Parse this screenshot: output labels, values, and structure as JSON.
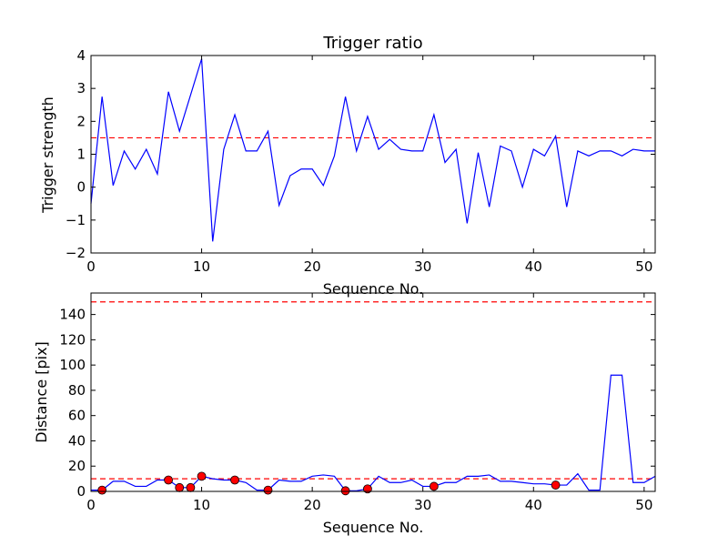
{
  "chart_data": [
    {
      "type": "line",
      "title": "Trigger ratio",
      "xlabel": "Sequence No.",
      "ylabel": "Trigger strength",
      "xlim": [
        0,
        51
      ],
      "ylim": [
        -2,
        4
      ],
      "xticks": [
        0,
        10,
        20,
        30,
        40,
        50
      ],
      "yticks": [
        -2,
        -1,
        0,
        1,
        2,
        3,
        4
      ],
      "ytick_labels": [
        "−2",
        "−1",
        "0",
        "1",
        "2",
        "3",
        "4"
      ],
      "grid": false,
      "threshold": 1.5,
      "threshold_color": "#ff0000",
      "line_color": "#0000ff",
      "x": [
        0,
        1,
        2,
        3,
        4,
        5,
        6,
        7,
        8,
        9,
        10,
        11,
        12,
        13,
        14,
        15,
        16,
        17,
        18,
        19,
        20,
        21,
        22,
        23,
        24,
        25,
        26,
        27,
        28,
        29,
        30,
        31,
        32,
        33,
        34,
        35,
        36,
        37,
        38,
        39,
        40,
        41,
        42,
        43,
        44,
        45,
        46,
        47,
        48,
        49,
        50,
        51
      ],
      "y": [
        -0.5,
        2.75,
        0.05,
        1.1,
        0.55,
        1.15,
        0.4,
        2.9,
        1.7,
        2.8,
        3.9,
        -1.65,
        1.15,
        2.2,
        1.1,
        1.1,
        1.7,
        -0.55,
        0.35,
        0.55,
        0.55,
        0.05,
        0.95,
        2.75,
        1.1,
        2.15,
        1.15,
        1.45,
        1.15,
        1.1,
        1.1,
        2.2,
        0.75,
        1.15,
        -1.1,
        1.05,
        -0.6,
        1.25,
        1.1,
        0.0,
        1.15,
        0.95,
        1.55,
        -0.6,
        1.1,
        0.95,
        1.1,
        1.1,
        0.95,
        1.15,
        1.1,
        1.1
      ]
    },
    {
      "type": "line",
      "title": "",
      "xlabel": "Sequence No.",
      "ylabel": "Distance [pix]",
      "xlim": [
        0,
        51
      ],
      "ylim": [
        0,
        157
      ],
      "xticks": [
        0,
        10,
        20,
        30,
        40,
        50
      ],
      "yticks": [
        0,
        20,
        40,
        60,
        80,
        100,
        120,
        140
      ],
      "grid": false,
      "thresholds": [
        10,
        150
      ],
      "threshold_color": "#ff0000",
      "line_color": "#0000ff",
      "marker_color": "#ff0000",
      "x": [
        0,
        1,
        2,
        3,
        4,
        5,
        6,
        7,
        8,
        9,
        10,
        11,
        12,
        13,
        14,
        15,
        16,
        17,
        18,
        19,
        20,
        21,
        22,
        23,
        24,
        25,
        26,
        27,
        28,
        29,
        30,
        31,
        32,
        33,
        34,
        35,
        36,
        37,
        38,
        39,
        40,
        41,
        42,
        43,
        44,
        45,
        46,
        47,
        48,
        49,
        50,
        51
      ],
      "y": [
        1,
        1,
        8,
        8,
        4,
        4,
        9,
        9,
        3,
        3,
        12,
        10,
        9,
        9,
        7,
        1,
        1,
        9,
        8,
        8,
        12,
        13,
        12,
        0.5,
        0.5,
        2,
        12,
        7,
        7,
        9,
        4,
        4,
        7,
        7,
        12,
        12,
        13,
        8,
        8,
        7,
        6,
        6,
        5,
        5,
        14,
        1,
        1,
        92,
        92,
        7,
        7,
        12
      ],
      "markers": [
        {
          "x": 1,
          "y": 1
        },
        {
          "x": 7,
          "y": 9
        },
        {
          "x": 8,
          "y": 3
        },
        {
          "x": 9,
          "y": 3
        },
        {
          "x": 10,
          "y": 12
        },
        {
          "x": 13,
          "y": 9
        },
        {
          "x": 16,
          "y": 1
        },
        {
          "x": 23,
          "y": 0.5
        },
        {
          "x": 25,
          "y": 2
        },
        {
          "x": 31,
          "y": 4
        },
        {
          "x": 42,
          "y": 5
        }
      ]
    }
  ]
}
